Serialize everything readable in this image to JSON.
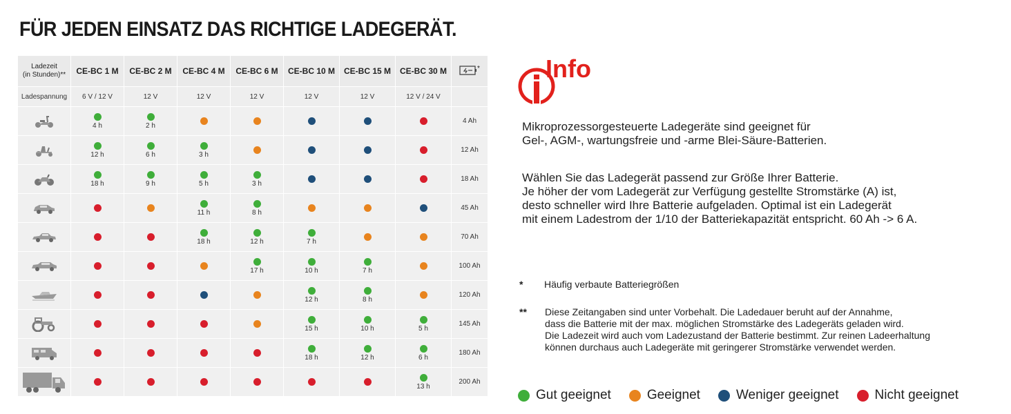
{
  "title": "FÜR JEDEN EINSATZ DAS RICHTIGE LADEGERÄT.",
  "colors": {
    "gut": "#3fae3a",
    "geeignet": "#e8841e",
    "weniger": "#1f4f7a",
    "nicht": "#d81e2c",
    "info_red": "#e2211c"
  },
  "table": {
    "corner_label_1": "Ladezeit",
    "corner_label_2": "(in Stunden)**",
    "columns": [
      "CE-BC 1 M",
      "CE-BC 2 M",
      "CE-BC 4 M",
      "CE-BC 6 M",
      "CE-BC 10 M",
      "CE-BC 15 M",
      "CE-BC 30 M"
    ],
    "battery_column": {
      "icon": "battery-icon",
      "mark": "*"
    },
    "voltage_label": "Ladespannung",
    "voltages": [
      "6 V / 12 V",
      "12 V",
      "12 V",
      "12 V",
      "12 V",
      "12 V",
      "12 V / 24 V"
    ],
    "rows": [
      {
        "vehicle": "scooter-icon",
        "capacity": "4 Ah",
        "cells": [
          {
            "r": "gut",
            "h": "4 h"
          },
          {
            "r": "gut",
            "h": "2 h"
          },
          {
            "r": "geeignet",
            "h": ""
          },
          {
            "r": "geeignet",
            "h": ""
          },
          {
            "r": "weniger",
            "h": ""
          },
          {
            "r": "weniger",
            "h": ""
          },
          {
            "r": "nicht",
            "h": ""
          }
        ]
      },
      {
        "vehicle": "lawn-tractor-icon",
        "capacity": "12 Ah",
        "cells": [
          {
            "r": "gut",
            "h": "12 h"
          },
          {
            "r": "gut",
            "h": "6 h"
          },
          {
            "r": "gut",
            "h": "3 h"
          },
          {
            "r": "geeignet",
            "h": ""
          },
          {
            "r": "weniger",
            "h": ""
          },
          {
            "r": "weniger",
            "h": ""
          },
          {
            "r": "nicht",
            "h": ""
          }
        ]
      },
      {
        "vehicle": "motorcycle-icon",
        "capacity": "18 Ah",
        "cells": [
          {
            "r": "gut",
            "h": "18 h"
          },
          {
            "r": "gut",
            "h": "9 h"
          },
          {
            "r": "gut",
            "h": "5 h"
          },
          {
            "r": "gut",
            "h": "3 h"
          },
          {
            "r": "weniger",
            "h": ""
          },
          {
            "r": "weniger",
            "h": ""
          },
          {
            "r": "nicht",
            "h": ""
          }
        ]
      },
      {
        "vehicle": "small-car-icon",
        "capacity": "45 Ah",
        "cells": [
          {
            "r": "nicht",
            "h": ""
          },
          {
            "r": "geeignet",
            "h": ""
          },
          {
            "r": "gut",
            "h": "11 h"
          },
          {
            "r": "gut",
            "h": "8 h"
          },
          {
            "r": "geeignet",
            "h": ""
          },
          {
            "r": "geeignet",
            "h": ""
          },
          {
            "r": "weniger",
            "h": ""
          }
        ]
      },
      {
        "vehicle": "sedan-icon",
        "capacity": "70 Ah",
        "cells": [
          {
            "r": "nicht",
            "h": ""
          },
          {
            "r": "nicht",
            "h": ""
          },
          {
            "r": "gut",
            "h": "18 h"
          },
          {
            "r": "gut",
            "h": "12 h"
          },
          {
            "r": "gut",
            "h": "7 h"
          },
          {
            "r": "geeignet",
            "h": ""
          },
          {
            "r": "geeignet",
            "h": ""
          }
        ]
      },
      {
        "vehicle": "large-car-icon",
        "capacity": "100 Ah",
        "cells": [
          {
            "r": "nicht",
            "h": ""
          },
          {
            "r": "nicht",
            "h": ""
          },
          {
            "r": "geeignet",
            "h": ""
          },
          {
            "r": "gut",
            "h": "17 h"
          },
          {
            "r": "gut",
            "h": "10 h"
          },
          {
            "r": "gut",
            "h": "7 h"
          },
          {
            "r": "geeignet",
            "h": ""
          }
        ]
      },
      {
        "vehicle": "boat-icon",
        "capacity": "120 Ah",
        "cells": [
          {
            "r": "nicht",
            "h": ""
          },
          {
            "r": "nicht",
            "h": ""
          },
          {
            "r": "weniger",
            "h": ""
          },
          {
            "r": "geeignet",
            "h": ""
          },
          {
            "r": "gut",
            "h": "12 h"
          },
          {
            "r": "gut",
            "h": "8 h"
          },
          {
            "r": "geeignet",
            "h": ""
          }
        ]
      },
      {
        "vehicle": "tractor-icon",
        "capacity": "145 Ah",
        "cells": [
          {
            "r": "nicht",
            "h": ""
          },
          {
            "r": "nicht",
            "h": ""
          },
          {
            "r": "nicht",
            "h": ""
          },
          {
            "r": "geeignet",
            "h": ""
          },
          {
            "r": "gut",
            "h": "15 h"
          },
          {
            "r": "gut",
            "h": "10 h"
          },
          {
            "r": "gut",
            "h": "5 h"
          }
        ]
      },
      {
        "vehicle": "camper-icon",
        "capacity": "180 Ah",
        "cells": [
          {
            "r": "nicht",
            "h": ""
          },
          {
            "r": "nicht",
            "h": ""
          },
          {
            "r": "nicht",
            "h": ""
          },
          {
            "r": "nicht",
            "h": ""
          },
          {
            "r": "gut",
            "h": "18 h"
          },
          {
            "r": "gut",
            "h": "12 h"
          },
          {
            "r": "gut",
            "h": "6 h"
          }
        ]
      },
      {
        "vehicle": "truck-icon",
        "capacity": "200 Ah",
        "cells": [
          {
            "r": "nicht",
            "h": ""
          },
          {
            "r": "nicht",
            "h": ""
          },
          {
            "r": "nicht",
            "h": ""
          },
          {
            "r": "nicht",
            "h": ""
          },
          {
            "r": "nicht",
            "h": ""
          },
          {
            "r": "nicht",
            "h": ""
          },
          {
            "r": "gut",
            "h": "13 h"
          }
        ]
      }
    ]
  },
  "info": {
    "logo_text": "Info",
    "logo_letter": "i",
    "p1": [
      "Mikroprozessorgesteuerte Ladegeräte sind geeignet für",
      "Gel-, AGM-, wartungsfreie und -arme Blei-Säure-Batterien."
    ],
    "p2": [
      "Wählen Sie das Ladegerät passend zur Größe Ihrer Batterie.",
      "Je höher der vom Ladegerät zur Verfügung gestellte Stromstärke (A) ist,",
      "desto schneller wird Ihre Batterie aufgeladen. Optimal ist ein Ladegerät",
      "mit einem Ladestrom der 1/10 der Batteriekapazität entspricht. 60 Ah -> 6 A."
    ],
    "note1": {
      "mark": "*",
      "text": "Häufig verbaute Batteriegrößen"
    },
    "note2": {
      "mark": "**",
      "lines": [
        "Diese Zeitangaben sind unter Vorbehalt. Die Ladedauer beruht auf der Annahme,",
        "dass die Batterie mit der max. möglichen Stromstärke des Ladegeräts geladen wird.",
        "Die Ladezeit wird auch vom Ladezustand der Batterie bestimmt. Zur reinen Ladeerhaltung",
        "können durchaus auch Ladegeräte mit geringerer Stromstärke verwendet werden."
      ]
    }
  },
  "legend": [
    {
      "key": "gut",
      "label": "Gut geeignet"
    },
    {
      "key": "geeignet",
      "label": "Geeignet"
    },
    {
      "key": "weniger",
      "label": "Weniger geeignet"
    },
    {
      "key": "nicht",
      "label": "Nicht geeignet"
    }
  ]
}
